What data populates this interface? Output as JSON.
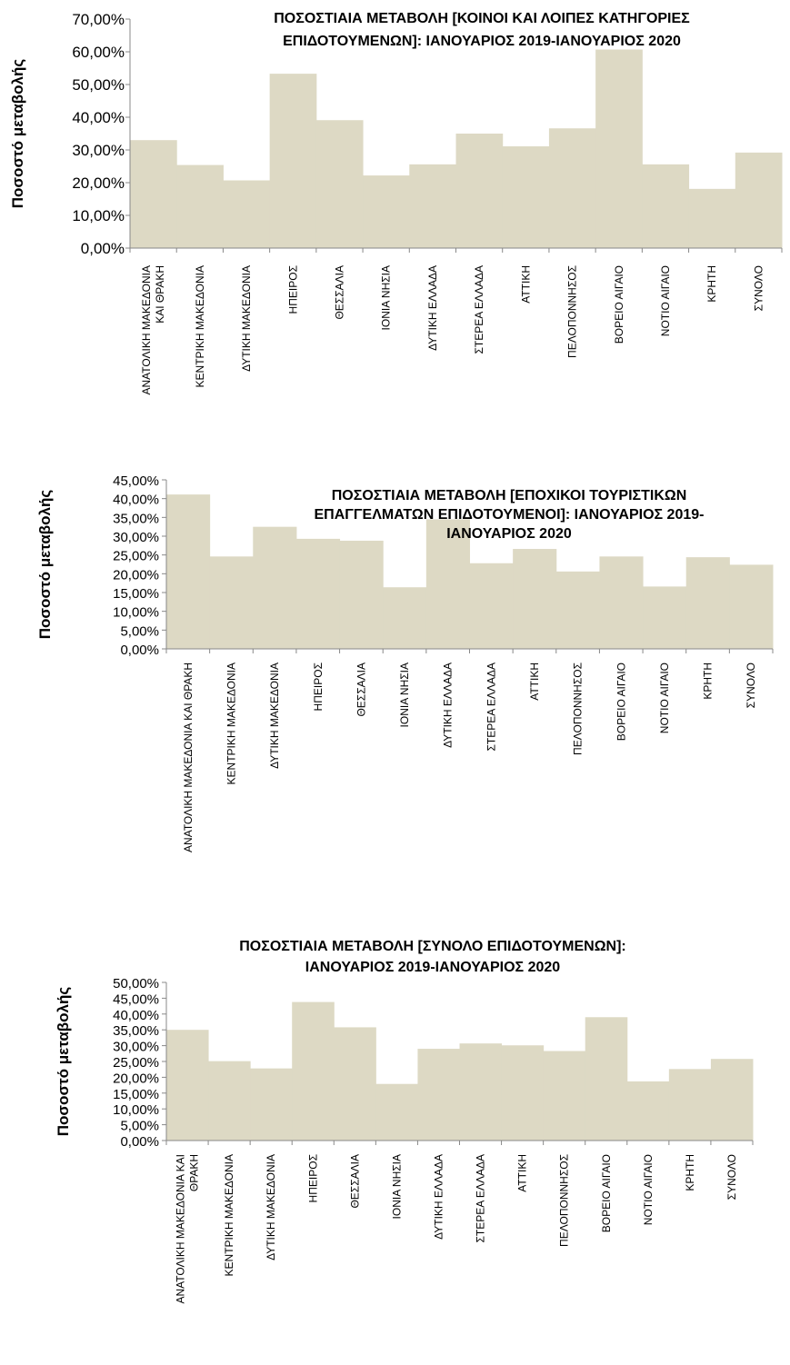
{
  "chart_data": [
    {
      "type": "bar",
      "title_lines": [
        "ΠΟΣΟΣΤΙΑΙΑ ΜΕΤΑΒΟΛΗ [ΚΟΙΝΟΙ ΚΑΙ ΛΟΙΠΕΣ ΚΑΤΗΓΟΡΙΕΣ",
        "ΕΠΙΔΟΤΟΥΜΕΝΩΝ]:  ΙΑΝΟΥΑΡΙΟΣ 2019-ΙΑΝΟΥΑΡΙΟΣ 2020"
      ],
      "ylabel": "Ποσοστό μεταβολής",
      "ylim": [
        0,
        70
      ],
      "yticks": [
        "0,00%",
        "10,00%",
        "20,00%",
        "30,00%",
        "40,00%",
        "50,00%",
        "60,00%",
        "70,00%"
      ],
      "categories": [
        [
          "ΑΝΑΤΟΛΙΚΗ ΜΑΚΕΔΟΝΙΑ",
          "ΚΑΙ ΘΡΑΚΗ"
        ],
        [
          "ΚΕΝΤΡΙΚΗ ΜΑΚΕΔΟΝΙΑ"
        ],
        [
          "ΔΥΤΙΚΗ ΜΑΚΕΔΟΝΙΑ"
        ],
        [
          "ΗΠΕΙΡΟΣ"
        ],
        [
          "ΘΕΣΣΑΛΙΑ"
        ],
        [
          "ΙΟΝΙΑ ΝΗΣΙΑ"
        ],
        [
          "ΔΥΤΙΚΗ ΕΛΛΑΔΑ"
        ],
        [
          "ΣΤΕΡΕΑ ΕΛΛΑΔΑ"
        ],
        [
          "ΑΤΤΙΚΗ"
        ],
        [
          "ΠΕΛΟΠΟΝΝΗΣΟΣ"
        ],
        [
          "ΒΟΡΕΙΟ ΑΙΓΑΙΟ"
        ],
        [
          "ΝΟΤΙΟ ΑΙΓΑΙΟ"
        ],
        [
          "ΚΡΗΤΗ"
        ],
        [
          "ΣΥΝΟΛΟ"
        ]
      ],
      "values": [
        33.0,
        25.4,
        20.7,
        53.3,
        39.1,
        22.2,
        25.6,
        35.0,
        31.1,
        36.6,
        60.7,
        25.6,
        18.1,
        29.2
      ],
      "color": "#ddd9c4",
      "grid": false,
      "legend": "none"
    },
    {
      "type": "bar",
      "title_lines": [
        "ΠΟΣΟΣΤΙΑΙΑ ΜΕΤΑΒΟΛΗ [ΕΠΟΧΙΚΟΙ ΤΟΥΡΙΣΤΙΚΩΝ",
        "ΕΠΑΓΓΕΛΜΑΤΩΝ ΕΠΙΔΟΤΟΥΜΕΝΟΙ]: ΙΑΝΟΥΑΡΙΟΣ 2019-",
        "ΙΑΝΟΥΑΡΙΟΣ  2020"
      ],
      "ylabel": "Ποσοστό μεταβολής",
      "ylim": [
        0,
        45
      ],
      "yticks": [
        "0,00%",
        "5,00%",
        "10,00%",
        "15,00%",
        "20,00%",
        "25,00%",
        "30,00%",
        "35,00%",
        "40,00%",
        "45,00%"
      ],
      "categories": [
        [
          "ΑΝΑΤΟΛΙΚΗ ΜΑΚΕΔΟΝΙΑ ΚΑΙ ΘΡΑΚΗ"
        ],
        [
          "ΚΕΝΤΡΙΚΗ ΜΑΚΕΔΟΝΙΑ"
        ],
        [
          "ΔΥΤΙΚΗ ΜΑΚΕΔΟΝΙΑ"
        ],
        [
          "ΗΠΕΙΡΟΣ"
        ],
        [
          "ΘΕΣΣΑΛΙΑ"
        ],
        [
          "ΙΟΝΙΑ ΝΗΣΙΑ"
        ],
        [
          "ΔΥΤΙΚΗ ΕΛΛΑΔΑ"
        ],
        [
          "ΣΤΕΡΕΑ ΕΛΛΑΔΑ"
        ],
        [
          "ΑΤΤΙΚΗ"
        ],
        [
          "ΠΕΛΟΠΟΝΝΗΣΟΣ"
        ],
        [
          "ΒΟΡΕΙΟ ΑΙΓΑΙΟ"
        ],
        [
          "ΝΟΤΙΟ ΑΙΓΑΙΟ"
        ],
        [
          "ΚΡΗΤΗ"
        ],
        [
          "ΣΥΝΟΛΟ"
        ]
      ],
      "values": [
        41.1,
        24.6,
        32.5,
        29.3,
        28.8,
        16.4,
        34.5,
        22.8,
        26.6,
        20.6,
        24.6,
        16.6,
        24.4,
        22.4
      ],
      "color": "#ddd9c4",
      "grid": false,
      "legend": "none"
    },
    {
      "type": "bar",
      "title_lines": [
        "ΠΟΣΟΣΤΙΑΙΑ ΜΕΤΑΒΟΛΗ [ΣΥΝΟΛΟ ΕΠΙΔΟΤΟΥΜΕΝΩΝ]:",
        "ΙΑΝΟΥΑΡΙΟΣ 2019-ΙΑΝΟΥΑΡΙΟΣ  2020"
      ],
      "ylabel": "Ποσοστό μεταβολής",
      "ylim": [
        0,
        50
      ],
      "yticks": [
        "0,00%",
        "5,00%",
        "10,00%",
        "15,00%",
        "20,00%",
        "25,00%",
        "30,00%",
        "35,00%",
        "40,00%",
        "45,00%",
        "50,00%"
      ],
      "categories": [
        [
          "ΑΝΑΤΟΛΙΚΗ ΜΑΚΕΔΟΝΙΑ ΚΑΙ",
          "ΘΡΑΚΗ"
        ],
        [
          "ΚΕΝΤΡΙΚΗ ΜΑΚΕΔΟΝΙΑ"
        ],
        [
          "ΔΥΤΙΚΗ ΜΑΚΕΔΟΝΙΑ"
        ],
        [
          "ΗΠΕΙΡΟΣ"
        ],
        [
          "ΘΕΣΣΑΛΙΑ"
        ],
        [
          "ΙΟΝΙΑ ΝΗΣΙΑ"
        ],
        [
          "ΔΥΤΙΚΗ ΕΛΛΑΔΑ"
        ],
        [
          "ΣΤΕΡΕΑ ΕΛΛΑΔΑ"
        ],
        [
          "ΑΤΤΙΚΗ"
        ],
        [
          "ΠΕΛΟΠΟΝΝΗΣΟΣ"
        ],
        [
          "ΒΟΡΕΙΟ ΑΙΓΑΙΟ"
        ],
        [
          "ΝΟΤΙΟ ΑΙΓΑΙΟ"
        ],
        [
          "ΚΡΗΤΗ"
        ],
        [
          "ΣΥΝΟΛΟ"
        ]
      ],
      "values": [
        35.0,
        25.1,
        22.8,
        43.8,
        35.8,
        17.9,
        29.0,
        30.7,
        30.1,
        28.3,
        39.0,
        18.7,
        22.6,
        25.8
      ],
      "color": "#ddd9c4",
      "grid": false,
      "legend": "none"
    }
  ]
}
